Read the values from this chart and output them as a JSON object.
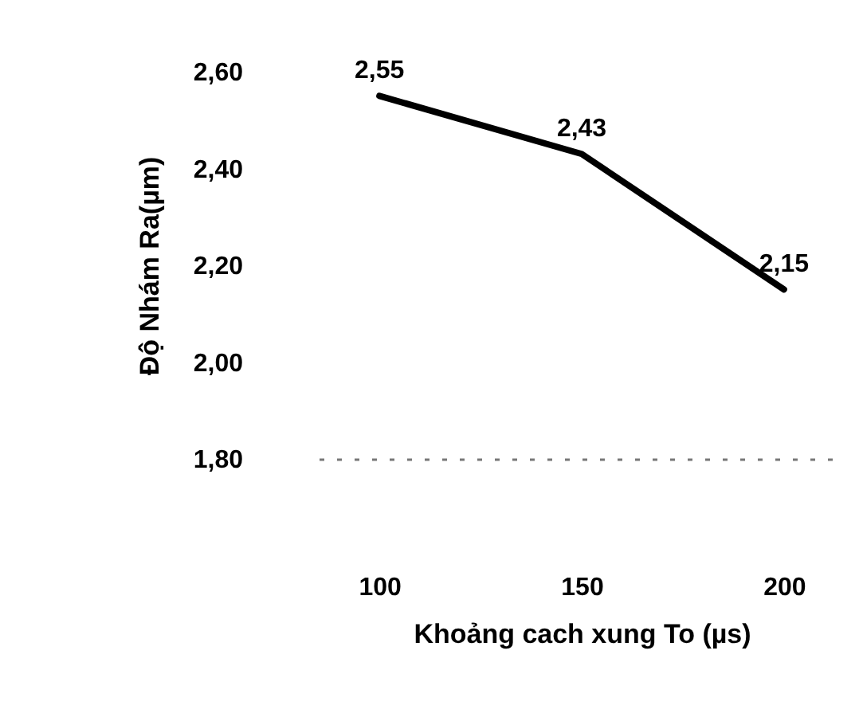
{
  "chart_data": {
    "type": "line",
    "xlabel": "Khoảng cach xung To (µs)",
    "ylabel": "Độ Nhám Ra(µm)",
    "x": [
      100,
      150,
      200
    ],
    "xlim": [
      85,
      215
    ],
    "xticks": [
      100,
      150,
      200
    ],
    "ylim": [
      1.8,
      2.6
    ],
    "yticks": [
      {
        "value": 1.8,
        "label": "1,80"
      },
      {
        "value": 2.0,
        "label": "2,00"
      },
      {
        "value": 2.2,
        "label": "2,20"
      },
      {
        "value": 2.4,
        "label": "2,40"
      },
      {
        "value": 2.6,
        "label": "2,60"
      }
    ],
    "series": [
      {
        "color": "#000000",
        "values": [
          2.55,
          2.43,
          2.15
        ],
        "value_labels": [
          "2,55",
          "2,43",
          "2,15"
        ]
      }
    ],
    "grid": false,
    "marker": "none",
    "line_style": "solid"
  }
}
